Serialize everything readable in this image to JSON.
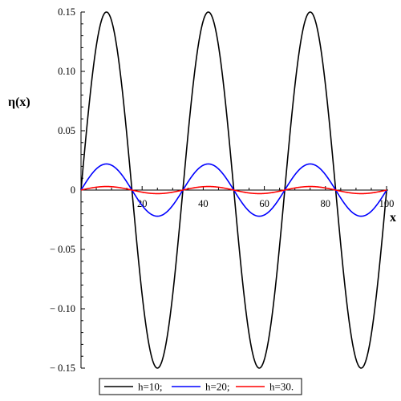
{
  "chart_data": {
    "type": "line",
    "title": "",
    "xlabel": "x",
    "ylabel": "η(x)",
    "xlim": [
      0,
      100
    ],
    "ylim": [
      -0.15,
      0.15
    ],
    "x_ticks": [
      20,
      40,
      60,
      80,
      100
    ],
    "x_tick_labels": [
      "20",
      "40",
      "60",
      "80",
      "100"
    ],
    "y_ticks": [
      0.15,
      0.1,
      0.05,
      0,
      -0.05,
      -0.1,
      -0.15
    ],
    "y_tick_labels": [
      "0.15",
      "0.10",
      "0.05",
      "0",
      "− 0.05",
      "− 0.10",
      "− 0.15"
    ],
    "grid": false,
    "legend_position": "bottom",
    "series": [
      {
        "name": "h=10;",
        "color": "#000000",
        "x": [
          0,
          4.17,
          8.33,
          12.5,
          16.67,
          20.83,
          25,
          29.17,
          33.33,
          37.5,
          41.67,
          45.83,
          50,
          54.17,
          58.33,
          62.5,
          66.67,
          70.83,
          75,
          79.17,
          83.33,
          87.5,
          91.67,
          95.83,
          100
        ],
        "y": [
          0,
          0.106,
          0.15,
          0.106,
          0,
          -0.106,
          -0.15,
          -0.106,
          0,
          0.106,
          0.15,
          0.106,
          0,
          -0.106,
          -0.15,
          -0.106,
          0,
          0.106,
          0.15,
          0.106,
          0,
          -0.106,
          -0.15,
          -0.106,
          0
        ]
      },
      {
        "name": "h=20;",
        "color": "#0000ff",
        "x": [
          0,
          4.17,
          8.33,
          12.5,
          16.67,
          20.83,
          25,
          29.17,
          33.33,
          37.5,
          41.67,
          45.83,
          50,
          54.17,
          58.33,
          62.5,
          66.67,
          70.83,
          75,
          79.17,
          83.33,
          87.5,
          91.67,
          95.83,
          100
        ],
        "y": [
          0,
          0.016,
          0.022,
          0.016,
          0,
          -0.016,
          -0.022,
          -0.016,
          0,
          0.016,
          0.022,
          0.016,
          0,
          -0.016,
          -0.022,
          -0.016,
          0,
          0.016,
          0.022,
          0.016,
          0,
          -0.016,
          -0.022,
          -0.016,
          0
        ]
      },
      {
        "name": "h=30.",
        "color": "#ff0000",
        "x": [
          0,
          4.17,
          8.33,
          12.5,
          16.67,
          20.83,
          25,
          29.17,
          33.33,
          37.5,
          41.67,
          45.83,
          50,
          54.17,
          58.33,
          62.5,
          66.67,
          70.83,
          75,
          79.17,
          83.33,
          87.5,
          91.67,
          95.83,
          100
        ],
        "y": [
          0,
          0.0021,
          0.003,
          0.0021,
          0,
          -0.0021,
          -0.003,
          -0.0021,
          0,
          0.0021,
          0.003,
          0.0021,
          0,
          -0.0021,
          -0.003,
          -0.0021,
          0,
          0.0021,
          0.003,
          0.0021,
          0,
          -0.0021,
          -0.003,
          -0.0021,
          0
        ]
      }
    ]
  }
}
